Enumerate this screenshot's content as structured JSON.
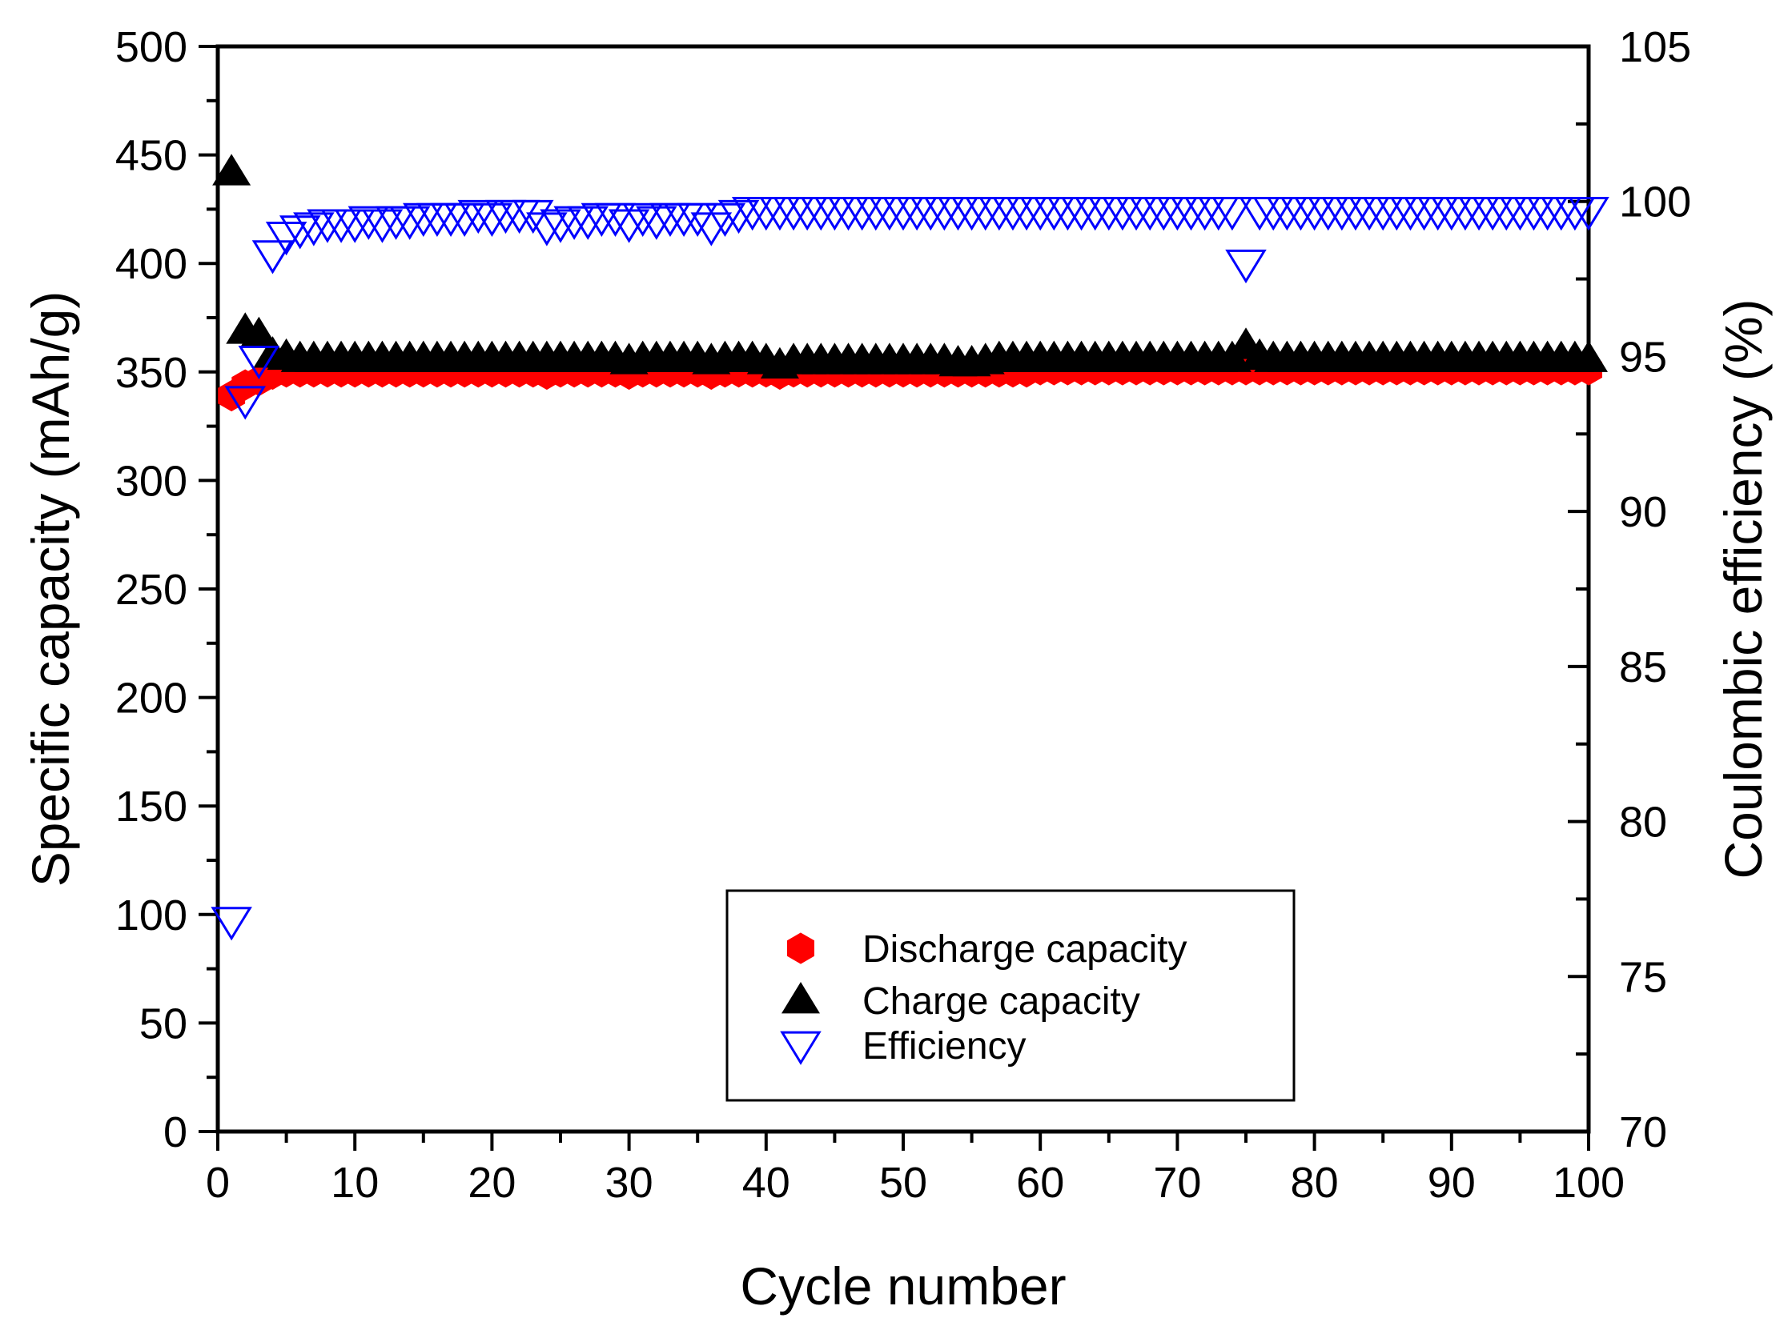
{
  "chart_data": {
    "type": "scatter",
    "title": "",
    "xlabel": "Cycle number",
    "ylabel": "Specific capacity (mAh/g)",
    "y2label": "Coulombic efficiency (%)",
    "xlim": [
      0,
      100
    ],
    "ylim": [
      0,
      500
    ],
    "y2lim": [
      70,
      105
    ],
    "x_ticks": [
      "0",
      "10",
      "20",
      "30",
      "40",
      "50",
      "60",
      "70",
      "80",
      "90",
      "100"
    ],
    "y_ticks": [
      "0",
      "50",
      "100",
      "150",
      "200",
      "250",
      "300",
      "350",
      "400",
      "450",
      "500"
    ],
    "y2_ticks": [
      "70",
      "75",
      "80",
      "85",
      "90",
      "95",
      "100",
      "105"
    ],
    "legend_position": "bottom-center",
    "series": [
      {
        "name": "Discharge capacity",
        "axis": "left",
        "marker": "hexagon-filled",
        "color": "#ff0000",
        "x": [
          1,
          2,
          3,
          4,
          5,
          6,
          7,
          8,
          9,
          10,
          11,
          12,
          13,
          14,
          15,
          16,
          17,
          18,
          19,
          20,
          21,
          22,
          23,
          24,
          25,
          26,
          27,
          28,
          29,
          30,
          31,
          32,
          33,
          34,
          35,
          36,
          37,
          38,
          39,
          40,
          41,
          42,
          43,
          44,
          45,
          46,
          47,
          48,
          49,
          50,
          51,
          52,
          53,
          54,
          55,
          56,
          57,
          58,
          59,
          60,
          61,
          62,
          63,
          64,
          65,
          66,
          67,
          68,
          69,
          70,
          71,
          72,
          73,
          74,
          75,
          76,
          77,
          78,
          79,
          80,
          81,
          82,
          83,
          84,
          85,
          86,
          87,
          88,
          89,
          90,
          91,
          92,
          93,
          94,
          95,
          96,
          97,
          98,
          99,
          100
        ],
        "values": [
          339,
          344,
          346,
          349,
          350,
          350,
          350,
          350,
          350,
          350,
          350,
          350,
          350,
          350,
          350,
          350,
          350,
          350,
          350,
          350,
          350,
          350,
          350,
          349,
          350,
          350,
          350,
          350,
          350,
          349,
          350,
          350,
          350,
          350,
          350,
          349,
          350,
          350,
          350,
          350,
          349,
          350,
          350,
          350,
          350,
          350,
          350,
          350,
          350,
          350,
          350,
          350,
          350,
          350,
          350,
          350,
          350,
          350,
          350,
          351,
          351,
          351,
          351,
          351,
          351,
          351,
          351,
          351,
          351,
          351,
          351,
          351,
          351,
          351,
          351,
          351,
          351,
          351,
          351,
          351,
          351,
          351,
          351,
          351,
          351,
          351,
          351,
          351,
          351,
          351,
          351,
          351,
          351,
          351,
          351,
          351,
          351,
          351,
          351,
          351
        ]
      },
      {
        "name": "Charge capacity",
        "axis": "left",
        "marker": "triangle-up-filled",
        "color": "#000000",
        "x": [
          1,
          2,
          3,
          4,
          5,
          6,
          7,
          8,
          9,
          10,
          11,
          12,
          13,
          14,
          15,
          16,
          17,
          18,
          19,
          20,
          21,
          22,
          23,
          24,
          25,
          26,
          27,
          28,
          29,
          30,
          31,
          32,
          33,
          34,
          35,
          36,
          37,
          38,
          39,
          40,
          41,
          42,
          43,
          44,
          45,
          46,
          47,
          48,
          49,
          50,
          51,
          52,
          53,
          54,
          55,
          56,
          57,
          58,
          59,
          60,
          61,
          62,
          63,
          64,
          65,
          66,
          67,
          68,
          69,
          70,
          71,
          72,
          73,
          74,
          75,
          76,
          77,
          78,
          79,
          80,
          81,
          82,
          83,
          84,
          85,
          86,
          87,
          88,
          89,
          90,
          91,
          92,
          93,
          94,
          95,
          96,
          97,
          98,
          99,
          100
        ],
        "values": [
          442,
          369,
          367,
          358,
          357,
          356,
          356,
          356,
          356,
          356,
          356,
          356,
          356,
          356,
          356,
          356,
          356,
          356,
          356,
          356,
          356,
          356,
          356,
          356,
          356,
          356,
          356,
          356,
          356,
          355,
          356,
          356,
          356,
          356,
          356,
          355,
          356,
          356,
          356,
          355,
          353,
          355,
          355,
          355,
          355,
          355,
          355,
          355,
          355,
          355,
          355,
          355,
          355,
          354,
          354,
          355,
          356,
          356,
          356,
          356,
          356,
          356,
          356,
          356,
          356,
          356,
          356,
          356,
          356,
          356,
          356,
          356,
          356,
          356,
          362,
          357,
          356,
          356,
          356,
          356,
          356,
          356,
          356,
          356,
          356,
          356,
          356,
          356,
          356,
          356,
          356,
          356,
          356,
          356,
          356,
          356,
          356,
          356,
          356,
          356
        ]
      },
      {
        "name": "Efficiency",
        "axis": "right",
        "marker": "triangle-down-open",
        "color": "#0000ff",
        "x": [
          1,
          2,
          3,
          4,
          5,
          6,
          7,
          8,
          9,
          10,
          11,
          12,
          13,
          14,
          15,
          16,
          17,
          18,
          19,
          20,
          21,
          22,
          23,
          24,
          25,
          26,
          27,
          28,
          29,
          30,
          31,
          32,
          33,
          34,
          35,
          36,
          37,
          38,
          39,
          40,
          41,
          42,
          43,
          44,
          45,
          46,
          47,
          48,
          49,
          50,
          51,
          52,
          53,
          54,
          55,
          56,
          57,
          58,
          59,
          60,
          61,
          62,
          63,
          64,
          65,
          66,
          67,
          68,
          69,
          70,
          71,
          72,
          73,
          74,
          75,
          76,
          77,
          78,
          79,
          80,
          81,
          82,
          83,
          84,
          85,
          86,
          87,
          88,
          89,
          90,
          91,
          92,
          93,
          94,
          95,
          96,
          97,
          98,
          99,
          100
        ],
        "values": [
          76.8,
          93.6,
          94.9,
          98.3,
          98.9,
          99.1,
          99.2,
          99.3,
          99.3,
          99.3,
          99.4,
          99.3,
          99.4,
          99.4,
          99.5,
          99.5,
          99.5,
          99.5,
          99.6,
          99.5,
          99.6,
          99.6,
          99.6,
          99.2,
          99.3,
          99.4,
          99.4,
          99.5,
          99.5,
          99.3,
          99.5,
          99.4,
          99.5,
          99.5,
          99.5,
          99.2,
          99.5,
          99.6,
          99.7,
          99.7,
          99.7,
          99.7,
          99.7,
          99.7,
          99.7,
          99.7,
          99.7,
          99.7,
          99.7,
          99.7,
          99.7,
          99.7,
          99.7,
          99.7,
          99.7,
          99.7,
          99.7,
          99.7,
          99.7,
          99.7,
          99.7,
          99.7,
          99.7,
          99.7,
          99.7,
          99.7,
          99.7,
          99.7,
          99.7,
          99.7,
          99.7,
          99.7,
          99.7,
          99.7,
          98.0,
          99.7,
          99.7,
          99.7,
          99.7,
          99.7,
          99.7,
          99.7,
          99.7,
          99.7,
          99.7,
          99.7,
          99.7,
          99.7,
          99.7,
          99.7,
          99.7,
          99.7,
          99.7,
          99.7,
          99.7,
          99.7,
          99.7,
          99.7,
          99.7,
          99.7
        ]
      }
    ]
  }
}
